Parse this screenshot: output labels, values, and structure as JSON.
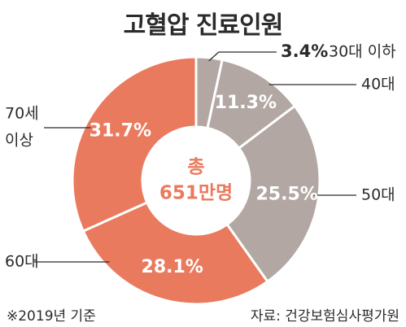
{
  "chart_data": {
    "type": "pie",
    "donut": true,
    "title": "고혈압 진료인원",
    "center_label": [
      "총",
      "651만명"
    ],
    "slices": [
      {
        "label": "30대 이하",
        "value": 3.4,
        "value_label": "3.4%",
        "color": "#b2a7a3"
      },
      {
        "label": "40대",
        "value": 11.3,
        "value_label": "11.3%",
        "color": "#b2a7a3"
      },
      {
        "label": "50대",
        "value": 25.5,
        "value_label": "25.5%",
        "color": "#b2a7a3"
      },
      {
        "label": "60대",
        "value": 28.1,
        "value_label": "28.1%",
        "color": "#ea7a5e"
      },
      {
        "label": "70세 이상",
        "value": 31.7,
        "value_label": "31.7%",
        "color": "#ea7a5e"
      }
    ],
    "note": "※2019년 기준",
    "source": "자료: 건강보험심사평가원"
  },
  "colors": {
    "accent": "#ea7a5e",
    "muted": "#b2a7a3",
    "text": "#2b2b2b"
  }
}
